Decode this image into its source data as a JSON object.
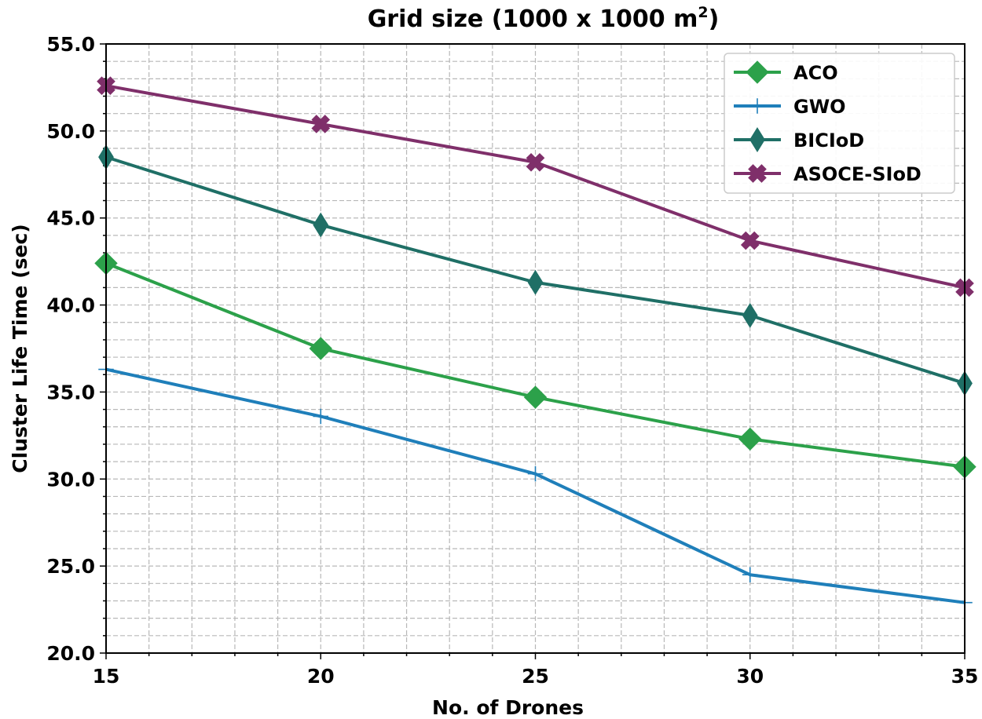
{
  "chart_data": {
    "type": "line",
    "title": "Grid size (1000 x 1000 m",
    "title_unit_sup": "2",
    "title_close": ")",
    "xlabel": "No. of Drones",
    "ylabel": "Cluster Life Time (sec)",
    "x": [
      15,
      20,
      25,
      30,
      35
    ],
    "xlim": [
      15,
      35
    ],
    "ylim": [
      20,
      55
    ],
    "xticks": [
      "15",
      "20",
      "25",
      "30",
      "35"
    ],
    "yticks": [
      "20.0",
      "25.0",
      "30.0",
      "35.0",
      "40.0",
      "45.0",
      "50.0",
      "55.0"
    ],
    "grid": true,
    "legend_position": "upper-right",
    "series": [
      {
        "name": "ACO",
        "values": [
          42.4,
          37.5,
          34.7,
          32.3,
          30.7
        ],
        "color": "#2ca14a",
        "marker": "diamond"
      },
      {
        "name": "GWO",
        "values": [
          36.3,
          33.6,
          30.3,
          24.5,
          22.9
        ],
        "color": "#1f7fba",
        "marker": "plus"
      },
      {
        "name": "BICIoD",
        "values": [
          48.5,
          44.6,
          41.3,
          39.4,
          35.5
        ],
        "color": "#1f6f66",
        "marker": "thin-diamond"
      },
      {
        "name": "ASOCE-SIoD",
        "values": [
          52.6,
          50.4,
          48.2,
          43.7,
          41.0
        ],
        "color": "#7f2f6a",
        "marker": "x"
      }
    ]
  }
}
